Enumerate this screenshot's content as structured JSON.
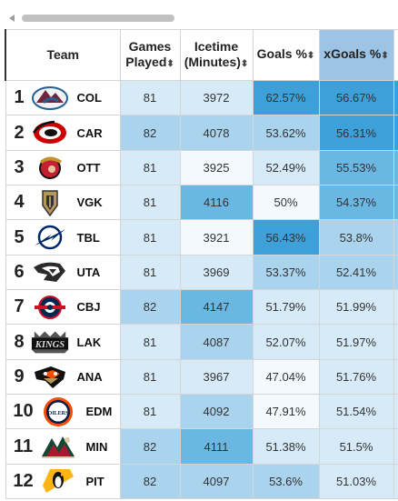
{
  "headers": {
    "team": "Team",
    "games_played_1": "Games",
    "games_played_2": "Played",
    "icetime_1": "Icetime",
    "icetime_2": "(Minutes)",
    "goals_pct": "Goals %",
    "xgoals_pct": "xGoals %",
    "sort_glyph": "⬍"
  },
  "colors": {
    "lightest": "#f4f9fd",
    "light": "#d6eaf8",
    "mid": "#aad3ee",
    "dark": "#6ab7e3",
    "darkest": "#3ea0d8"
  },
  "rows": [
    {
      "rank": "1",
      "abbr": "COL",
      "logo_icon": "avalanche-logo-icon",
      "games": "81",
      "icetime": "3972",
      "goals_pct": "62.57%",
      "xgoals_pct": "56.67%"
    },
    {
      "rank": "2",
      "abbr": "CAR",
      "logo_icon": "hurricanes-logo-icon",
      "games": "82",
      "icetime": "4078",
      "goals_pct": "53.62%",
      "xgoals_pct": "56.31%"
    },
    {
      "rank": "3",
      "abbr": "OTT",
      "logo_icon": "senators-logo-icon",
      "games": "81",
      "icetime": "3925",
      "goals_pct": "52.49%",
      "xgoals_pct": "55.53%"
    },
    {
      "rank": "4",
      "abbr": "VGK",
      "logo_icon": "golden-knights-logo-icon",
      "games": "81",
      "icetime": "4116",
      "goals_pct": "50%",
      "xgoals_pct": "54.37%"
    },
    {
      "rank": "5",
      "abbr": "TBL",
      "logo_icon": "lightning-logo-icon",
      "games": "81",
      "icetime": "3921",
      "goals_pct": "56.43%",
      "xgoals_pct": "53.8%"
    },
    {
      "rank": "6",
      "abbr": "UTA",
      "logo_icon": "utah-logo-icon",
      "games": "81",
      "icetime": "3969",
      "goals_pct": "53.37%",
      "xgoals_pct": "52.41%"
    },
    {
      "rank": "7",
      "abbr": "CBJ",
      "logo_icon": "blue-jackets-logo-icon",
      "games": "82",
      "icetime": "4147",
      "goals_pct": "51.79%",
      "xgoals_pct": "51.99%"
    },
    {
      "rank": "8",
      "abbr": "LAK",
      "logo_icon": "kings-logo-icon",
      "logo_text": "KINGS",
      "games": "81",
      "icetime": "4087",
      "goals_pct": "52.07%",
      "xgoals_pct": "51.97%"
    },
    {
      "rank": "9",
      "abbr": "ANA",
      "logo_icon": "ducks-logo-icon",
      "games": "81",
      "icetime": "3967",
      "goals_pct": "47.04%",
      "xgoals_pct": "51.76%"
    },
    {
      "rank": "10",
      "abbr": "EDM",
      "logo_icon": "oilers-logo-icon",
      "logo_text": "OILERS",
      "games": "81",
      "icetime": "4092",
      "goals_pct": "47.91%",
      "xgoals_pct": "51.54%"
    },
    {
      "rank": "11",
      "abbr": "MIN",
      "logo_icon": "wild-logo-icon",
      "games": "82",
      "icetime": "4111",
      "goals_pct": "51.38%",
      "xgoals_pct": "51.5%"
    },
    {
      "rank": "12",
      "abbr": "PIT",
      "logo_icon": "penguins-logo-icon",
      "games": "82",
      "icetime": "4097",
      "goals_pct": "53.6%",
      "xgoals_pct": "51.03%"
    }
  ]
}
